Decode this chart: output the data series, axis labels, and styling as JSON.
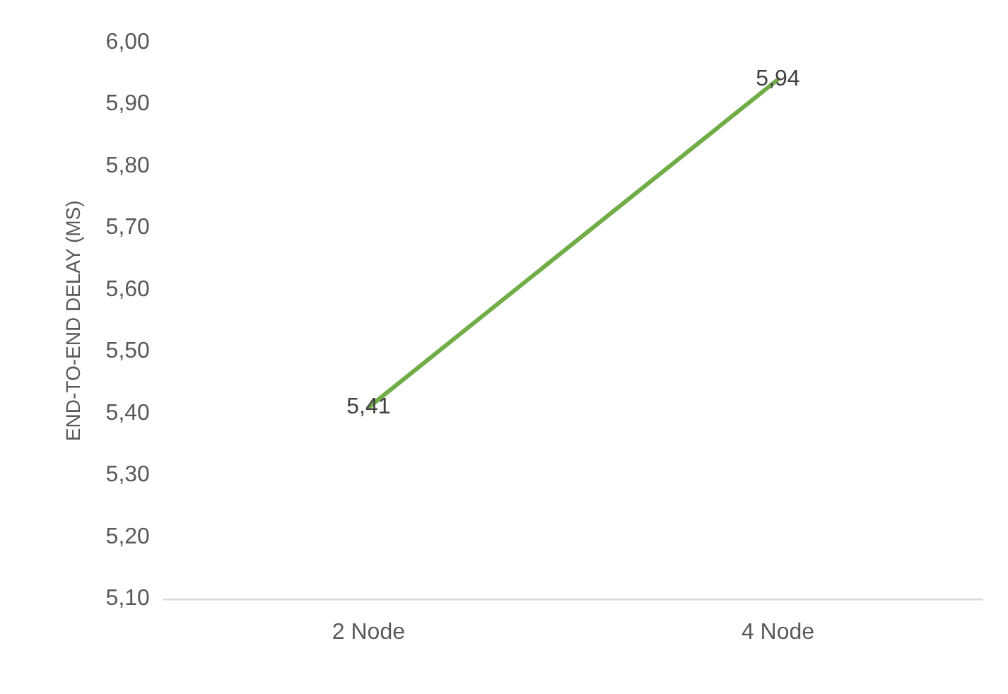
{
  "chart_data": {
    "type": "line",
    "ylabel": "END-TO-END DELAY (MS)",
    "categories": [
      "2 Node",
      "4 Node"
    ],
    "series": [
      {
        "color": "#70ad47",
        "values": [
          5.41,
          5.94
        ]
      }
    ],
    "ylim": [
      5.1,
      6.0
    ],
    "yticks": [
      {
        "value": 5.1,
        "label": "5,10"
      },
      {
        "value": 5.2,
        "label": "5,20"
      },
      {
        "value": 5.3,
        "label": "5,30"
      },
      {
        "value": 5.4,
        "label": "5,40"
      },
      {
        "value": 5.5,
        "label": "5,50"
      },
      {
        "value": 5.6,
        "label": "5,60"
      },
      {
        "value": 5.7,
        "label": "5,70"
      },
      {
        "value": 5.8,
        "label": "5,80"
      },
      {
        "value": 5.9,
        "label": "5,90"
      },
      {
        "value": 6.0,
        "label": "6,00"
      }
    ],
    "value_labels": [
      [
        "5,41",
        "5,94"
      ]
    ],
    "grid": false,
    "legend": false,
    "marker": "none",
    "line_style": "solid"
  }
}
